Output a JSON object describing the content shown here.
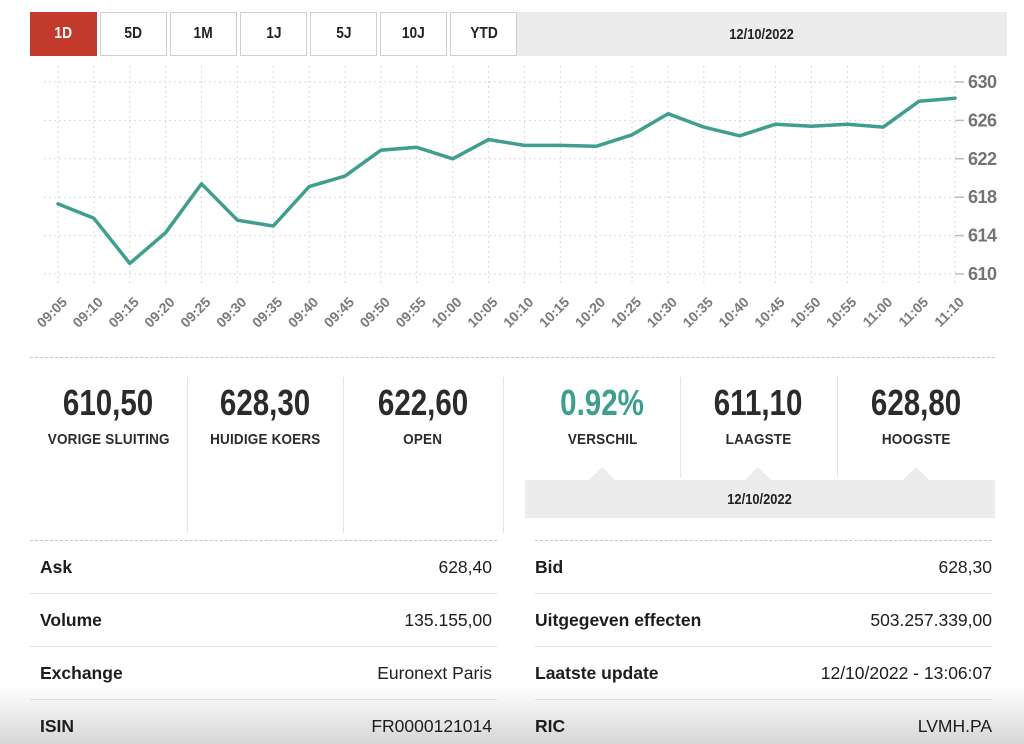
{
  "toolbar": {
    "ranges": [
      {
        "label": "1D",
        "active": true
      },
      {
        "label": "5D",
        "active": false
      },
      {
        "label": "1M",
        "active": false
      },
      {
        "label": "1J",
        "active": false
      },
      {
        "label": "5J",
        "active": false
      },
      {
        "label": "10J",
        "active": false
      },
      {
        "label": "YTD",
        "active": false
      }
    ],
    "date": "12/10/2022"
  },
  "chart_data": {
    "type": "line",
    "title": "",
    "xlabel": "",
    "ylabel": "",
    "x": [
      "09:05",
      "09:10",
      "09:15",
      "09:20",
      "09:25",
      "09:30",
      "09:35",
      "09:40",
      "09:45",
      "09:50",
      "09:55",
      "10:00",
      "10:05",
      "10:10",
      "10:15",
      "10:20",
      "10:25",
      "10:30",
      "10:35",
      "10:40",
      "10:45",
      "10:50",
      "10:55",
      "11:00",
      "11:05",
      "11:10"
    ],
    "values": [
      617.3,
      615.8,
      611.1,
      614.3,
      619.4,
      615.6,
      615.0,
      619.1,
      620.2,
      622.9,
      623.2,
      622.0,
      624.0,
      623.4,
      623.4,
      623.3,
      624.5,
      626.7,
      625.3,
      624.4,
      625.6,
      625.4,
      625.6,
      625.3,
      628.0,
      628.3
    ],
    "yticks": [
      610,
      614,
      618,
      622,
      626,
      630
    ],
    "ylim": [
      608.7,
      631.5
    ],
    "grid": true,
    "legend": "none",
    "y_axis_side": "right"
  },
  "stats": {
    "items": [
      {
        "value": "610,50",
        "label": "VORIGE SLUITING",
        "highlight": false
      },
      {
        "value": "628,30",
        "label": "HUIDIGE KOERS",
        "highlight": false
      },
      {
        "value": "622,60",
        "label": "OPEN",
        "highlight": false
      },
      {
        "value": "0.92%",
        "label": "VERSCHIL",
        "highlight": true
      },
      {
        "value": "611,10",
        "label": "LAAGSTE",
        "highlight": false
      },
      {
        "value": "628,80",
        "label": "HOOGSTE",
        "highlight": false
      }
    ],
    "date": "12/10/2022"
  },
  "details": {
    "left": [
      {
        "label": "Ask",
        "value": "628,40"
      },
      {
        "label": "Volume",
        "value": "135.155,00"
      },
      {
        "label": "Exchange",
        "value": "Euronext Paris"
      },
      {
        "label": "ISIN",
        "value": "FR0000121014"
      }
    ],
    "right": [
      {
        "label": "Bid",
        "value": "628,30"
      },
      {
        "label": "Uitgegeven effecten",
        "value": "503.257.339,00"
      },
      {
        "label": "Laatste update",
        "value": "12/10/2022 - 13:06:07"
      },
      {
        "label": "RIC",
        "value": "LVMH.PA"
      }
    ]
  },
  "colors": {
    "accent_red": "#c13a2b",
    "accent_teal": "#3f9e8e",
    "band_gray": "#ececec",
    "grid_gray": "#d9d9d9",
    "axis_text": "#7a7a7a"
  }
}
